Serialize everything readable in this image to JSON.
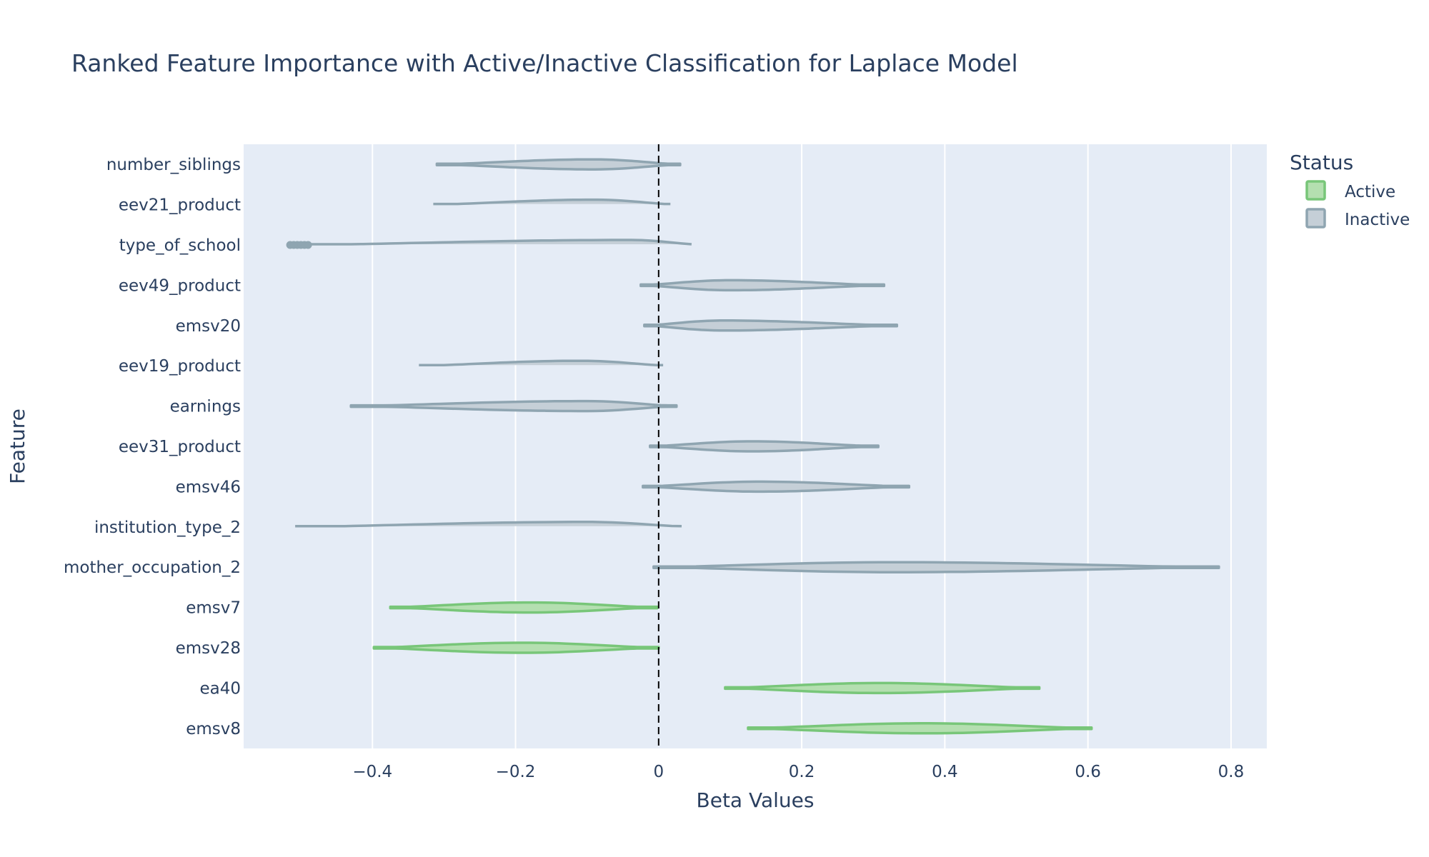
{
  "chart_data": {
    "type": "violin",
    "title": "Ranked Feature Importance with Active/Inactive Classification for Laplace Model",
    "xlabel": "Beta Values",
    "ylabel": "Feature",
    "xlim": [
      -0.58,
      0.85
    ],
    "xticks": [
      {
        "value": -0.4,
        "label": "−0.4"
      },
      {
        "value": -0.2,
        "label": "−0.2"
      },
      {
        "value": 0,
        "label": "0"
      },
      {
        "value": 0.2,
        "label": "0.2"
      },
      {
        "value": 0.4,
        "label": "0.4"
      },
      {
        "value": 0.6,
        "label": "0.6"
      },
      {
        "value": 0.8,
        "label": "0.8"
      }
    ],
    "reference_line": {
      "x": 0,
      "style": "dashed",
      "color": "#000000"
    },
    "grid": true,
    "legend": {
      "title": "Status",
      "position": "top-right",
      "entries": [
        {
          "name": "Active",
          "fill": "#b4dfb0",
          "stroke": "#78c679"
        },
        {
          "name": "Inactive",
          "fill": "#c5cfd7",
          "stroke": "#8fa5b1"
        }
      ]
    },
    "features": [
      {
        "name": "number_siblings",
        "status": "Inactive",
        "min": -0.31,
        "mode": -0.09,
        "max": 0.03
      },
      {
        "name": "eev21_product",
        "status": "Inactive",
        "min": -0.315,
        "mode": -0.09,
        "max": 0.025
      },
      {
        "name": "type_of_school",
        "status": "Inactive",
        "min": -0.5,
        "mode": -0.04,
        "max": 0.06,
        "outliers": [
          -0.515,
          -0.51,
          -0.505,
          -0.5,
          -0.495,
          -0.49
        ]
      },
      {
        "name": "eev49_product",
        "status": "Inactive",
        "min": -0.025,
        "mode": 0.1,
        "max": 0.315
      },
      {
        "name": "emsv20",
        "status": "Inactive",
        "min": -0.02,
        "mode": 0.09,
        "max": 0.333
      },
      {
        "name": "eev19_product",
        "status": "Inactive",
        "min": -0.335,
        "mode": -0.11,
        "max": 0.015
      },
      {
        "name": "earnings",
        "status": "Inactive",
        "min": -0.43,
        "mode": -0.1,
        "max": 0.025
      },
      {
        "name": "eev31_product",
        "status": "Inactive",
        "min": -0.012,
        "mode": 0.13,
        "max": 0.307
      },
      {
        "name": "emsv46",
        "status": "Inactive",
        "min": -0.022,
        "mode": 0.14,
        "max": 0.35
      },
      {
        "name": "institution_type_2",
        "status": "Inactive",
        "min": -0.508,
        "mode": -0.1,
        "max": 0.046
      },
      {
        "name": "mother_occupation_2",
        "status": "Inactive",
        "min": -0.007,
        "mode": 0.33,
        "max": 0.783
      },
      {
        "name": "emsv7",
        "status": "Active",
        "min": -0.375,
        "mode": -0.18,
        "max": -0.002
      },
      {
        "name": "emsv28",
        "status": "Active",
        "min": -0.398,
        "mode": -0.19,
        "max": 0.0
      },
      {
        "name": "ea40",
        "status": "Active",
        "min": 0.093,
        "mode": 0.31,
        "max": 0.532
      },
      {
        "name": "emsv8",
        "status": "Active",
        "min": 0.125,
        "mode": 0.37,
        "max": 0.605
      }
    ]
  }
}
